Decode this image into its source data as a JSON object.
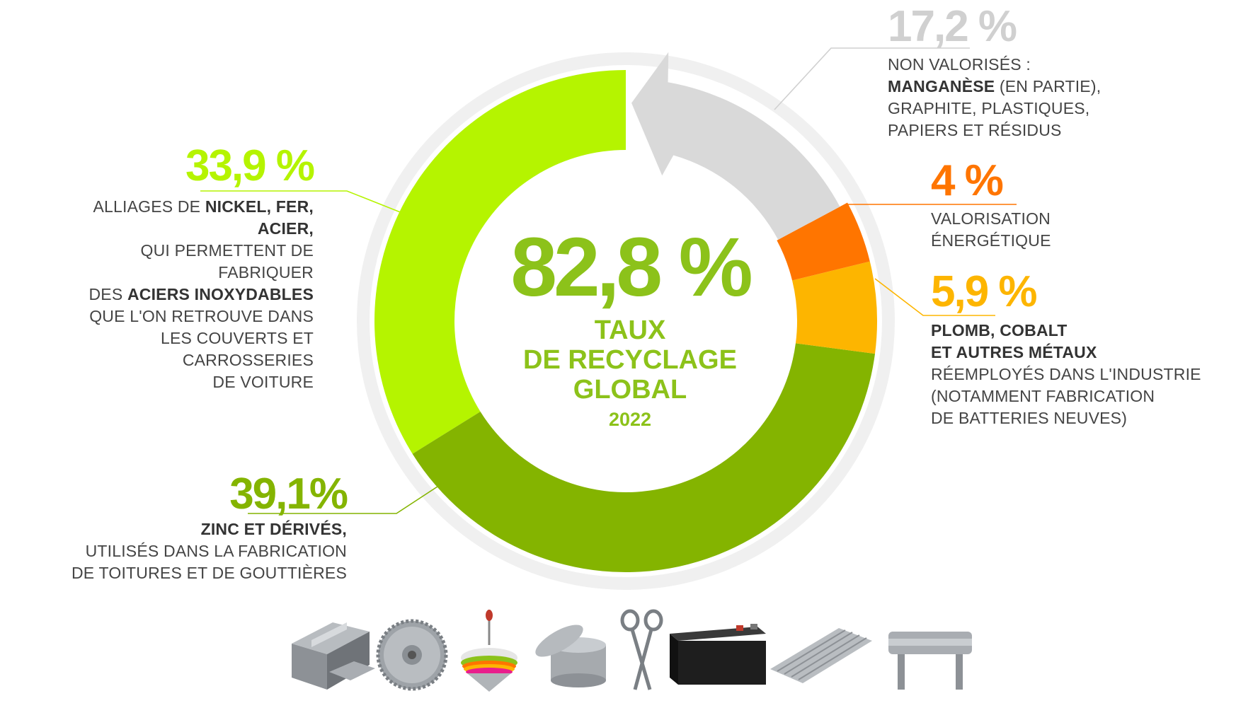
{
  "chart_data": {
    "type": "donut",
    "center": {
      "value_label": "82,8 %",
      "label_lines": [
        "TAUX",
        "DE RECYCLAGE",
        "GLOBAL"
      ],
      "year": "2022"
    },
    "segments": [
      {
        "value": 33.9,
        "value_label": "33,9 %",
        "color": "#b5f400",
        "text_lines": [
          [
            {
              "t": "ALLIAGES DE "
            },
            {
              "t": "NICKEL, FER, ACIER,",
              "b": true
            }
          ],
          [
            {
              "t": "QUI PERMETTENT DE FABRIQUER"
            }
          ],
          [
            {
              "t": "DES "
            },
            {
              "t": "ACIERS INOXYDABLES",
              "b": true
            }
          ],
          [
            {
              "t": "QUE L'ON RETROUVE DANS"
            }
          ],
          [
            {
              "t": "LES COUVERTS ET CARROSSERIES"
            }
          ],
          [
            {
              "t": "DE VOITURE"
            }
          ]
        ]
      },
      {
        "value": 39.1,
        "value_label": "39,1%",
        "color": "#84b400",
        "text_lines": [
          [
            {
              "t": "ZINC ET DÉRIVÉS,",
              "b": true
            }
          ],
          [
            {
              "t": "UTILISÉS DANS LA FABRICATION"
            }
          ],
          [
            {
              "t": "DE TOITURES ET DE GOUTTIÈRES"
            }
          ]
        ]
      },
      {
        "value": 5.9,
        "value_label": "5,9 %",
        "color": "#fdb500",
        "text_lines": [
          [
            {
              "t": "PLOMB, COBALT",
              "b": true
            }
          ],
          [
            {
              "t": "ET AUTRES MÉTAUX",
              "b": true
            }
          ],
          [
            {
              "t": "RÉEMPLOYÉS DANS L'INDUSTRIE"
            }
          ],
          [
            {
              "t": "(NOTAMMENT FABRICATION"
            }
          ],
          [
            {
              "t": "DE BATTERIES NEUVES)"
            }
          ]
        ]
      },
      {
        "value": 4,
        "value_label": "4 %",
        "color": "#ff7500",
        "text_lines": [
          [
            {
              "t": "VALORISATION"
            }
          ],
          [
            {
              "t": "ÉNERGÉTIQUE"
            }
          ]
        ]
      },
      {
        "value": 17.2,
        "value_label": "17,2 %",
        "color": "#d9d9d9",
        "text_lines": [
          [
            {
              "t": "NON VALORISÉS :"
            }
          ],
          [
            {
              "t": "MANGANÈSE",
              "b": true
            },
            {
              "t": " (EN PARTIE),"
            }
          ],
          [
            {
              "t": "GRAPHITE, PLASTIQUES,"
            }
          ],
          [
            {
              "t": "PAPIERS ET RÉSIDUS"
            }
          ]
        ]
      }
    ]
  },
  "icons": [
    "metal-ingots-icon",
    "circular-saw-blade-icon",
    "spinning-top-icon",
    "tin-box-icon",
    "scissors-icon",
    "battery-icon",
    "corrugated-sheet-icon",
    "guardrail-icon"
  ]
}
